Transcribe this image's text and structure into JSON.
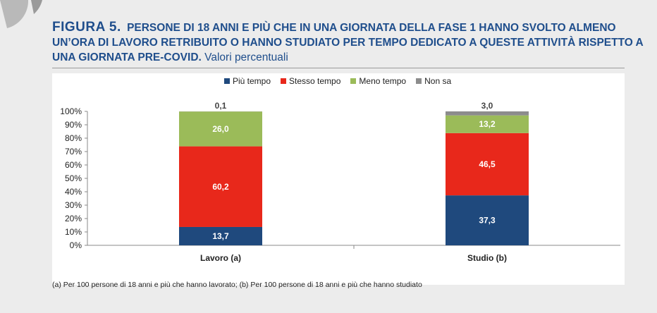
{
  "header": {
    "figure_label": "FIGURA 5.",
    "title": "PERSONE DI 18 ANNI E PIÙ CHE IN UNA GIORNATA DELLA FASE 1 HANNO SVOLTO ALMENO UN’ORA DI LAVORO RETRIBUITO O HANNO STUDIATO PER TEMPO DEDICATO A QUESTE ATTIVITÀ RISPETTO A UNA GIORNATA PRE-COVID.",
    "subtitle": "Valori percentuali"
  },
  "colors": {
    "title": "#1f4e8c",
    "piu_tempo": "#1f497d",
    "stesso_tempo": "#e8281b",
    "meno_tempo": "#9bbb59",
    "non_sa": "#8c8c8c"
  },
  "chart_data": {
    "type": "bar",
    "stacked": true,
    "categories": [
      "Lavoro (a)",
      "Studio (b)"
    ],
    "series": [
      {
        "name": "Più tempo",
        "values": [
          13.7,
          37.3
        ],
        "labels": [
          "13,7",
          "37,3"
        ],
        "color": "#1f497d"
      },
      {
        "name": "Stesso tempo",
        "values": [
          60.2,
          46.5
        ],
        "labels": [
          "60,2",
          "46,5"
        ],
        "color": "#e8281b"
      },
      {
        "name": "Meno tempo",
        "values": [
          26.0,
          13.2
        ],
        "labels": [
          "26,0",
          "13,2"
        ],
        "color": "#9bbb59"
      },
      {
        "name": "Non sa",
        "values": [
          0.1,
          3.0
        ],
        "labels": [
          "0,1",
          "3,0"
        ],
        "color": "#8c8c8c"
      }
    ],
    "ylim": [
      0,
      100
    ],
    "yticks": [
      "0%",
      "10%",
      "20%",
      "30%",
      "40%",
      "50%",
      "60%",
      "70%",
      "80%",
      "90%",
      "100%"
    ],
    "legend_position": "top-center",
    "grid": false
  },
  "footnote": "(a) Per 100 persone di 18 anni e più che hanno lavorato; (b) Per 100 persone di 18 anni e più che hanno studiato"
}
